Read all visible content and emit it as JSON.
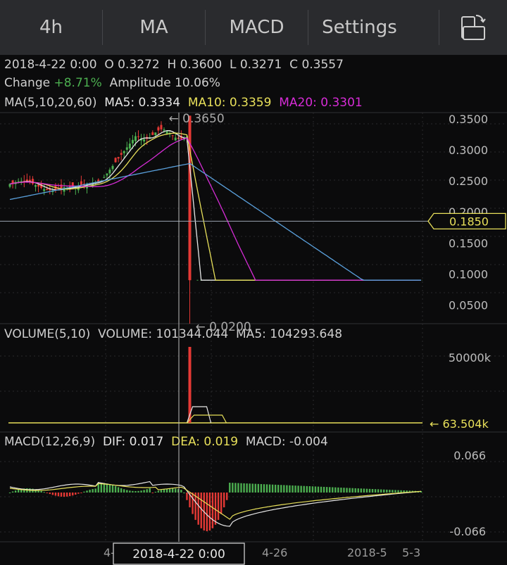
{
  "tabs": [
    {
      "label": "4h"
    },
    {
      "label": "MA"
    },
    {
      "label": "MACD"
    },
    {
      "label": "Settings"
    }
  ],
  "ohlc": {
    "date": "2018-4-22 0:00",
    "o_label": "O",
    "o": "0.3272",
    "h_label": "H",
    "h": "0.3600",
    "l_label": "L",
    "l": "0.3271",
    "c_label": "C",
    "c": "0.3557",
    "change_label": "Change",
    "change": "+8.71%",
    "amplitude_label": "Amplitude",
    "amplitude": "10.06%"
  },
  "ma_legend": {
    "title": "MA(5,10,20,60)",
    "ma5": "MA5: 0.3334",
    "ma10": "MA10: 0.3359",
    "ma20": "MA20: 0.3301"
  },
  "vol_legend": {
    "title": "VOLUME(5,10)",
    "volume": "VOLUME: 101344.044",
    "ma5": "MA5: 104293.648"
  },
  "macd_legend": {
    "title": "MACD(12,26,9)",
    "dif": "DIF: 0.017",
    "dea": "DEA: 0.019",
    "macd": "MACD: -0.004"
  },
  "colors": {
    "up": "#4caf50",
    "down": "#e53935",
    "ma5": "#e6e6e6",
    "ma10": "#e8e05a",
    "ma20": "#d62cd6",
    "ma60": "#5aa0dc",
    "price_label_border": "#e8e05a",
    "change": "#4caf50"
  },
  "chart_data": [
    {
      "type": "line",
      "name": "price",
      "y_ticks": [
        "0.3500",
        "0.3000",
        "0.2500",
        "0.2000",
        "0.1500",
        "0.1000",
        "0.0500"
      ],
      "ylim": [
        0.02,
        0.36
      ],
      "current_price": "0.1850",
      "high_marker": "0.3650",
      "low_marker": "0.0200",
      "candles_count": 145,
      "spike_index": 63,
      "series_levels": {
        "ma5": 0.3334,
        "ma10": 0.3359,
        "ma20": 0.3301,
        "floor": 0.09
      }
    },
    {
      "type": "bar",
      "name": "volume",
      "y_ticks": [
        "50000k"
      ],
      "last_value": "63.504k",
      "spike_value": 66000
    },
    {
      "type": "bar",
      "name": "macd",
      "y_ticks": [
        "0.066",
        "-0.066"
      ],
      "ylim": [
        -0.066,
        0.066
      ]
    }
  ],
  "x_axis": {
    "labels": [
      "4-",
      "4-26",
      "2018-5",
      "5-3"
    ],
    "crosshair_label": "2018-4-22  0:00"
  }
}
